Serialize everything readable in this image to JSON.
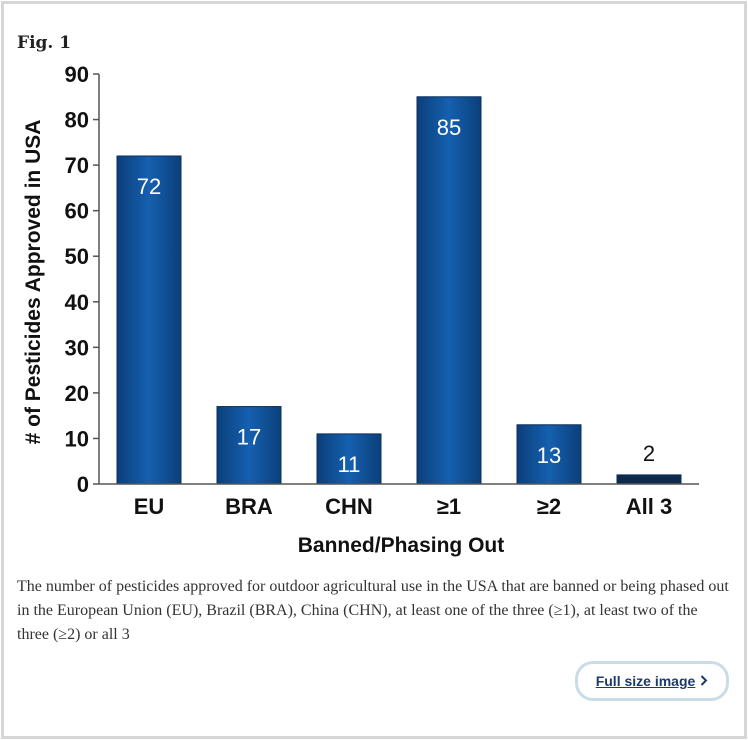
{
  "figure": {
    "label": "Fig. 1",
    "caption": "The number of pesticides approved for outdoor agricultural use in the USA that are banned or being phased out in the European Union (EU), Brazil (BRA), China (CHN), at least one of the three (≥1), at least two of the three (≥2) or all 3",
    "full_size_label": "Full size image",
    "full_size_icon": "chevron-right-icon"
  },
  "chart_data": {
    "type": "bar",
    "categories": [
      "EU",
      "BRA",
      "CHN",
      "≥1",
      "≥2",
      "All 3"
    ],
    "values": [
      72,
      17,
      11,
      85,
      13,
      2
    ],
    "data_labels": [
      "72",
      "17",
      "11",
      "85",
      "13",
      "2"
    ],
    "title": "",
    "xlabel": "Banned/Phasing Out",
    "ylabel": "# of Pesticides Approved in USA",
    "ylim": [
      0,
      90
    ],
    "yticks": [
      0,
      10,
      20,
      30,
      40,
      50,
      60,
      70,
      80,
      90
    ],
    "grid": false,
    "legend": "none",
    "bar_color": "#1560b0",
    "bar_color_dark": "#0b3f7a",
    "small_bar_color": "#0e2a4a"
  }
}
